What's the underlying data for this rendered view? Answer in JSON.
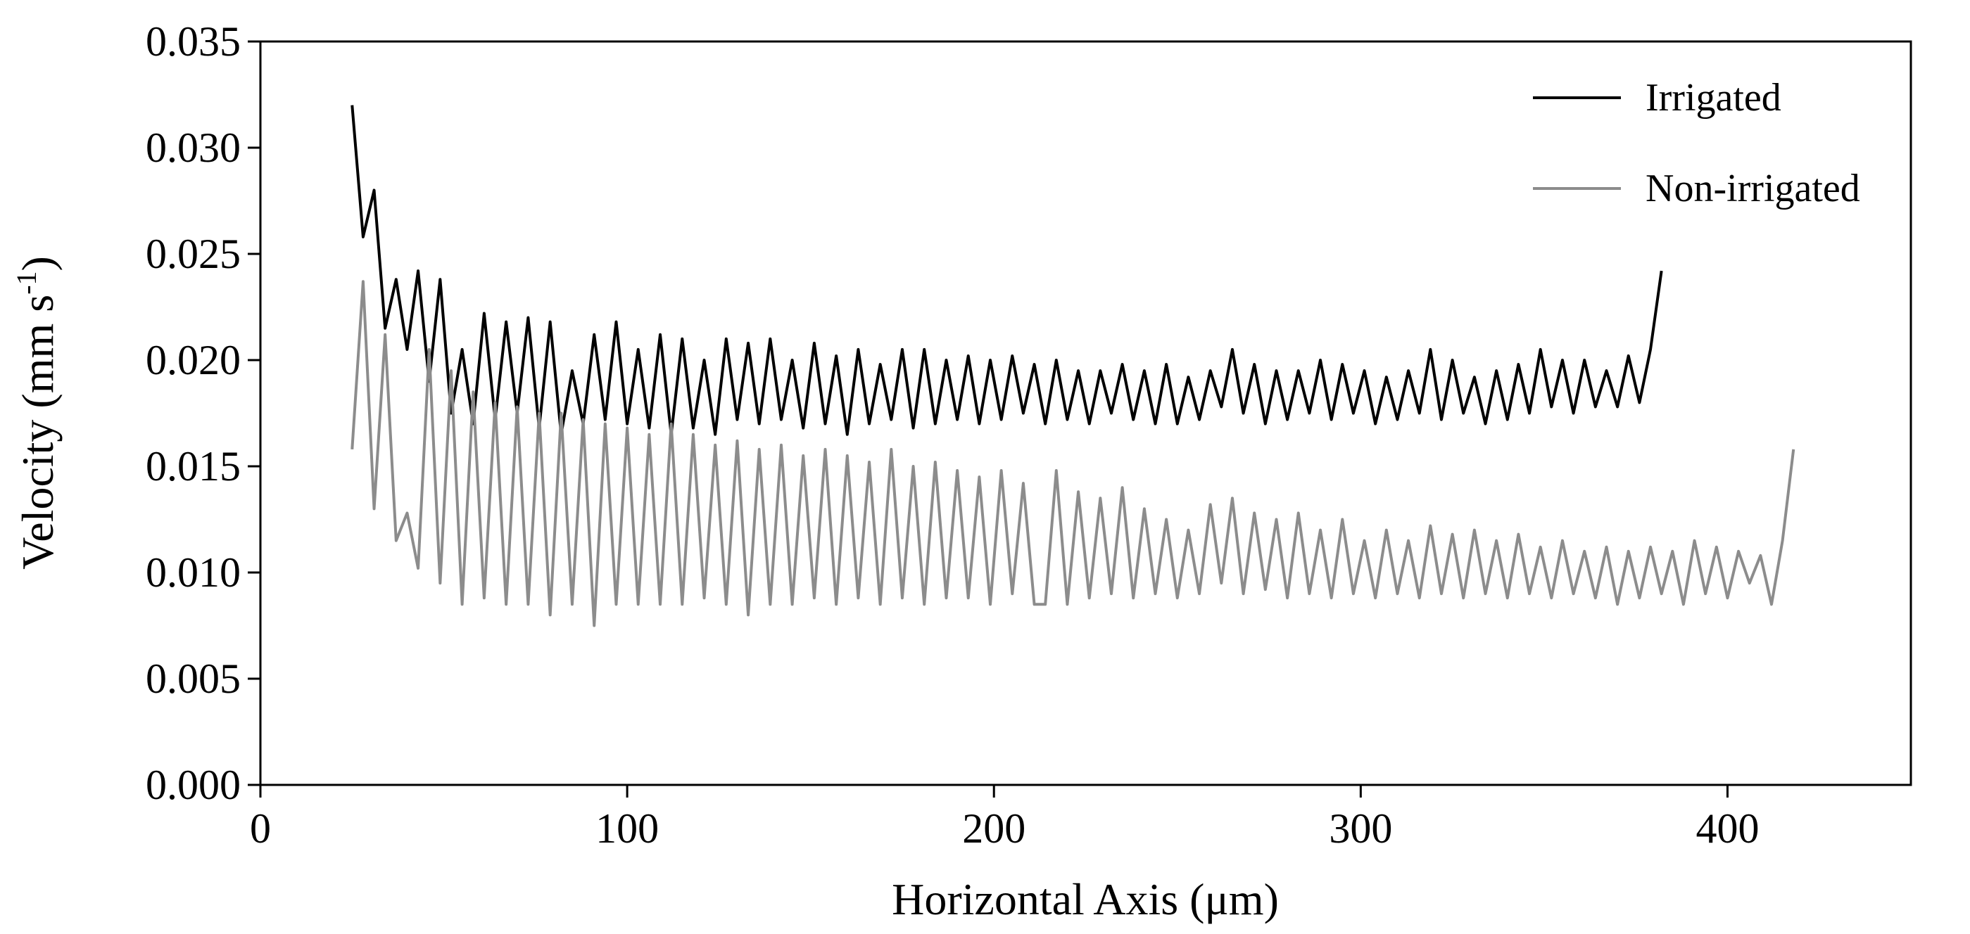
{
  "chart_data": {
    "type": "line",
    "xlabel": "Horizontal Axis (μm)",
    "ylabel": {
      "text": "Velocity (mm s",
      "superscript": "-1",
      "end": ")"
    },
    "xlim": [
      0,
      450
    ],
    "xticks": [
      0,
      100,
      200,
      300,
      400
    ],
    "ylim": [
      0,
      0.035
    ],
    "yticks": [
      {
        "value": 0,
        "label": "0.000"
      },
      0.005,
      {
        "value": 0.01,
        "label": "0.010"
      },
      0.015,
      {
        "value": 0.02,
        "label": "0.020"
      },
      0.025,
      {
        "value": 0.03,
        "label": "0.030"
      },
      0.035
    ],
    "legend": "upper right",
    "grid": false,
    "series": [
      {
        "name": "Irrigated",
        "color": "#000000",
        "x": [
          25,
          28,
          31,
          34,
          37,
          40,
          43,
          46,
          49,
          52,
          55,
          58,
          61,
          64,
          67,
          70,
          73,
          76,
          79,
          82,
          85,
          88,
          91,
          94,
          97,
          100,
          103,
          106,
          109,
          112,
          115,
          118,
          121,
          124,
          127,
          130,
          133,
          136,
          139,
          142,
          145,
          148,
          151,
          154,
          157,
          160,
          163,
          166,
          169,
          172,
          175,
          178,
          181,
          184,
          187,
          190,
          193,
          196,
          199,
          202,
          205,
          208,
          211,
          214,
          217,
          220,
          223,
          226,
          229,
          232,
          235,
          238,
          241,
          244,
          247,
          250,
          253,
          256,
          259,
          262,
          265,
          268,
          271,
          274,
          277,
          280,
          283,
          286,
          289,
          292,
          295,
          298,
          301,
          304,
          307,
          310,
          313,
          316,
          319,
          322,
          325,
          328,
          331,
          334,
          337,
          340,
          343,
          346,
          349,
          352,
          355,
          358,
          361,
          364,
          367,
          370,
          373,
          376,
          379,
          382
        ],
        "values": [
          0.032,
          0.0258,
          0.028,
          0.0215,
          0.0238,
          0.0205,
          0.0242,
          0.019,
          0.0238,
          0.0175,
          0.0205,
          0.017,
          0.0222,
          0.0172,
          0.0218,
          0.0175,
          0.022,
          0.0168,
          0.0218,
          0.0165,
          0.0195,
          0.017,
          0.0212,
          0.0172,
          0.0218,
          0.017,
          0.0205,
          0.0168,
          0.0212,
          0.0165,
          0.021,
          0.0168,
          0.02,
          0.0165,
          0.021,
          0.0172,
          0.0208,
          0.017,
          0.021,
          0.0172,
          0.02,
          0.0168,
          0.0208,
          0.017,
          0.0202,
          0.0165,
          0.0205,
          0.017,
          0.0198,
          0.0172,
          0.0205,
          0.0168,
          0.0205,
          0.017,
          0.02,
          0.0172,
          0.0202,
          0.017,
          0.02,
          0.0172,
          0.0202,
          0.0175,
          0.0198,
          0.017,
          0.02,
          0.0172,
          0.0195,
          0.017,
          0.0195,
          0.0175,
          0.0198,
          0.0172,
          0.0195,
          0.017,
          0.0198,
          0.017,
          0.0192,
          0.0172,
          0.0195,
          0.0178,
          0.0205,
          0.0175,
          0.0198,
          0.017,
          0.0195,
          0.0172,
          0.0195,
          0.0175,
          0.02,
          0.0172,
          0.0198,
          0.0175,
          0.0195,
          0.017,
          0.0192,
          0.0172,
          0.0195,
          0.0175,
          0.0205,
          0.0172,
          0.02,
          0.0175,
          0.0192,
          0.017,
          0.0195,
          0.0172,
          0.0198,
          0.0175,
          0.0205,
          0.0178,
          0.02,
          0.0175,
          0.02,
          0.0178,
          0.0195,
          0.0178,
          0.0202,
          0.018,
          0.0205,
          0.0242
        ]
      },
      {
        "name": "Non-irrigated",
        "color": "#8c8c8c",
        "x": [
          25,
          28,
          31,
          34,
          37,
          40,
          43,
          46,
          49,
          52,
          55,
          58,
          61,
          64,
          67,
          70,
          73,
          76,
          79,
          82,
          85,
          88,
          91,
          94,
          97,
          100,
          103,
          106,
          109,
          112,
          115,
          118,
          121,
          124,
          127,
          130,
          133,
          136,
          139,
          142,
          145,
          148,
          151,
          154,
          157,
          160,
          163,
          166,
          169,
          172,
          175,
          178,
          181,
          184,
          187,
          190,
          193,
          196,
          199,
          202,
          205,
          208,
          211,
          214,
          217,
          220,
          223,
          226,
          229,
          232,
          235,
          238,
          241,
          244,
          247,
          250,
          253,
          256,
          259,
          262,
          265,
          268,
          271,
          274,
          277,
          280,
          283,
          286,
          289,
          292,
          295,
          298,
          301,
          304,
          307,
          310,
          313,
          316,
          319,
          322,
          325,
          328,
          331,
          334,
          337,
          340,
          343,
          346,
          349,
          352,
          355,
          358,
          361,
          364,
          367,
          370,
          373,
          376,
          379,
          382,
          385,
          388,
          391,
          394,
          397,
          400,
          403,
          406,
          409,
          412,
          415,
          418
        ],
        "values": [
          0.0158,
          0.0237,
          0.013,
          0.0212,
          0.0115,
          0.0128,
          0.0102,
          0.0205,
          0.0095,
          0.0195,
          0.0085,
          0.0185,
          0.0088,
          0.018,
          0.0085,
          0.0178,
          0.0085,
          0.0175,
          0.008,
          0.0175,
          0.0085,
          0.0172,
          0.0075,
          0.017,
          0.0085,
          0.0168,
          0.0085,
          0.0165,
          0.0085,
          0.017,
          0.0085,
          0.0165,
          0.0088,
          0.016,
          0.0085,
          0.0162,
          0.008,
          0.0158,
          0.0085,
          0.016,
          0.0085,
          0.0155,
          0.0088,
          0.0158,
          0.0085,
          0.0155,
          0.0088,
          0.0152,
          0.0085,
          0.0158,
          0.0088,
          0.015,
          0.0085,
          0.0152,
          0.0088,
          0.0148,
          0.0088,
          0.0145,
          0.0085,
          0.0148,
          0.009,
          0.0142,
          0.0085,
          0.0085,
          0.0148,
          0.0085,
          0.0138,
          0.0088,
          0.0135,
          0.009,
          0.014,
          0.0088,
          0.013,
          0.009,
          0.0125,
          0.0088,
          0.012,
          0.009,
          0.0132,
          0.0095,
          0.0135,
          0.009,
          0.0128,
          0.0092,
          0.0125,
          0.0088,
          0.0128,
          0.009,
          0.012,
          0.0088,
          0.0125,
          0.009,
          0.0115,
          0.0088,
          0.012,
          0.009,
          0.0115,
          0.0088,
          0.0122,
          0.009,
          0.0118,
          0.0088,
          0.012,
          0.009,
          0.0115,
          0.0088,
          0.0118,
          0.009,
          0.0112,
          0.0088,
          0.0115,
          0.009,
          0.011,
          0.0088,
          0.0112,
          0.0085,
          0.011,
          0.0088,
          0.0112,
          0.009,
          0.011,
          0.0085,
          0.0115,
          0.009,
          0.0112,
          0.0088,
          0.011,
          0.0095,
          0.0108,
          0.0085,
          0.0115,
          0.0158
        ]
      }
    ]
  }
}
